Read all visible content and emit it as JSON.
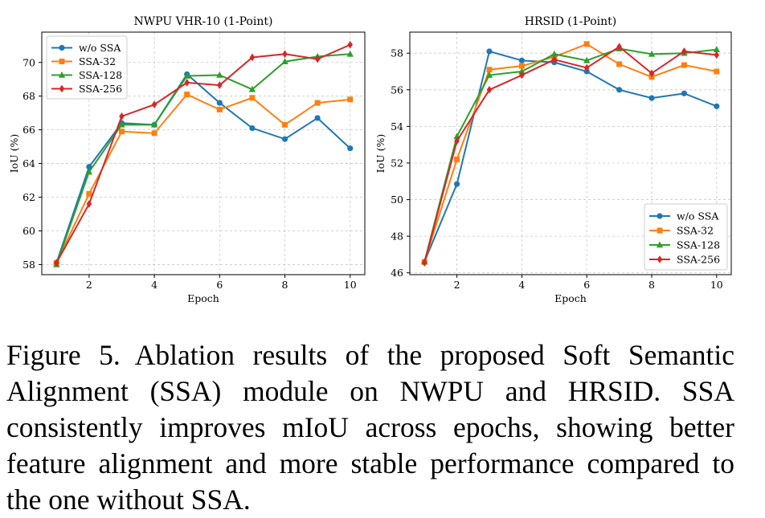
{
  "colors": {
    "w/o SSA": "#1f77b4",
    "SSA-32": "#ff7f0e",
    "SSA-128": "#2ca02c",
    "SSA-256": "#d62728"
  },
  "chart_data": [
    {
      "type": "line",
      "title": "NWPU VHR-10 (1-Point)",
      "xlabel": "Epoch",
      "ylabel": "IoU (%)",
      "x": [
        1,
        2,
        3,
        4,
        5,
        6,
        7,
        8,
        9,
        10
      ],
      "xticks": [
        "2",
        "4",
        "6",
        "8",
        "10"
      ],
      "yticks": [
        "58",
        "60",
        "62",
        "64",
        "66",
        "68",
        "70"
      ],
      "xlim": [
        0.55,
        10.45
      ],
      "ylim": [
        57.4,
        71.8
      ],
      "grid": true,
      "legend": "top-left",
      "series": [
        {
          "name": "w/o SSA",
          "marker": "circle",
          "values": [
            58.1,
            63.8,
            66.4,
            66.3,
            69.3,
            67.6,
            66.1,
            65.45,
            66.7,
            64.9
          ]
        },
        {
          "name": "SSA-32",
          "marker": "square",
          "values": [
            58.1,
            62.2,
            65.9,
            65.8,
            68.1,
            67.2,
            67.9,
            66.3,
            67.6,
            67.8
          ]
        },
        {
          "name": "SSA-128",
          "marker": "triangle",
          "values": [
            58.0,
            63.5,
            66.3,
            66.3,
            69.2,
            69.25,
            68.4,
            70.05,
            70.35,
            70.5
          ]
        },
        {
          "name": "SSA-256",
          "marker": "diamond",
          "values": [
            58.1,
            61.6,
            66.8,
            67.5,
            68.8,
            68.65,
            70.3,
            70.5,
            70.2,
            71.05
          ]
        }
      ]
    },
    {
      "type": "line",
      "title": "HRSID (1-Point)",
      "xlabel": "Epoch",
      "ylabel": "IoU (%)",
      "x": [
        1,
        2,
        3,
        4,
        5,
        6,
        7,
        8,
        9,
        10
      ],
      "xticks": [
        "2",
        "4",
        "6",
        "8",
        "10"
      ],
      "yticks": [
        "46",
        "48",
        "50",
        "52",
        "54",
        "56",
        "58"
      ],
      "xlim": [
        0.55,
        10.45
      ],
      "ylim": [
        45.9,
        59.15
      ],
      "grid": true,
      "legend": "bottom-right",
      "series": [
        {
          "name": "w/o SSA",
          "marker": "circle",
          "values": [
            46.6,
            50.85,
            58.1,
            57.6,
            57.5,
            57.0,
            56.0,
            55.55,
            55.8,
            55.1
          ]
        },
        {
          "name": "SSA-32",
          "marker": "square",
          "values": [
            46.6,
            52.2,
            57.1,
            57.3,
            57.8,
            58.5,
            57.4,
            56.7,
            57.35,
            57.0
          ]
        },
        {
          "name": "SSA-128",
          "marker": "triangle",
          "values": [
            46.6,
            53.45,
            56.8,
            57.0,
            57.95,
            57.6,
            58.25,
            57.95,
            58.0,
            58.2
          ]
        },
        {
          "name": "SSA-256",
          "marker": "diamond",
          "values": [
            46.55,
            53.2,
            56.0,
            56.8,
            57.65,
            57.2,
            58.35,
            56.9,
            58.1,
            57.9
          ]
        }
      ]
    }
  ],
  "caption": {
    "label": "Figure 5.",
    "text": "Ablation results of the proposed Soft Semantic Alignment (SSA) module on NWPU and HRSID. SSA consistently improves mIoU across epochs, showing better feature alignment and more stable performance compared to the one without SSA."
  }
}
